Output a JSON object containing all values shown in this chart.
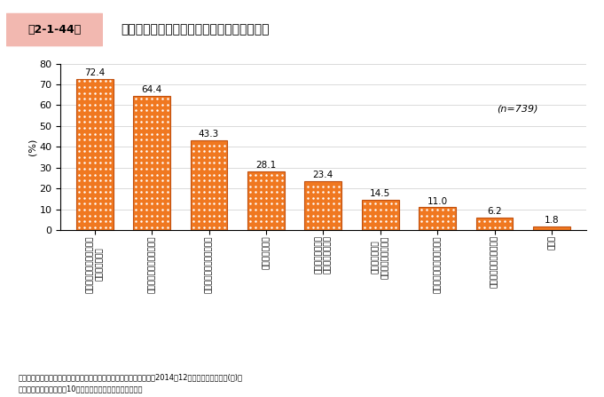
{
  "title": "中小企業におけるインターネットの利用状況",
  "title_tag": "第2-1-44図",
  "ylabel": "(%)",
  "ylim": [
    0,
    80
  ],
  "yticks": [
    0,
    10,
    20,
    30,
    40,
    50,
    60,
    70,
    80
  ],
  "n_label": "(n=739)",
  "categories": [
    "インターネットバンキング\nによる資金決済",
    "ホームページでの宣伝広告",
    "販売・受注・見積り受託等",
    "調達・仕入れ等",
    "でんさいネット、\nファクタリング等",
    "顧客への説明・\nプレゼンテーション",
    "市場調査・マーケティング",
    "メールマガジン宣伝広告",
    "その他"
  ],
  "values": [
    72.4,
    64.4,
    43.3,
    28.1,
    23.4,
    14.5,
    11.0,
    6.2,
    1.8
  ],
  "bar_color": "#F07820",
  "dot_color": "#FFFFFF",
  "bar_edge_color": "#C05010",
  "title_tag_bg": "#F2B8B0",
  "background_color": "#FFFFFF",
  "footnote1": "資料：中小企業庁委託「中小企業と地域との関わりに関する調査」（2014年12月、ランドブレイン(株)）",
  "footnote2": "（注）　本調査は、売上10億円超の企業を対象としている。"
}
